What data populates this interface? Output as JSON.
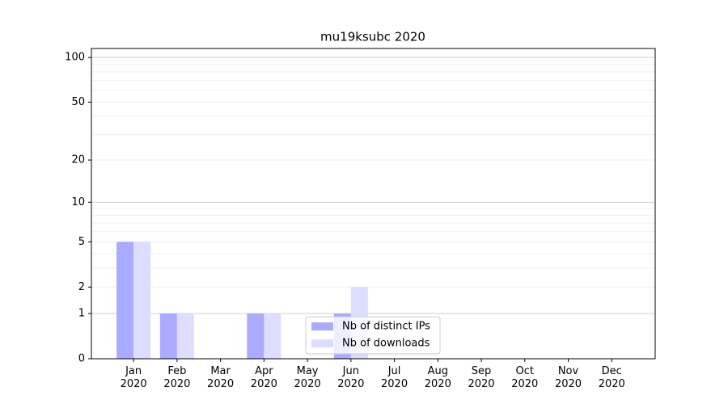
{
  "chart_data": {
    "type": "bar",
    "title": "mu19ksubc 2020",
    "categories": [
      "Jan 2020",
      "Feb 2020",
      "Mar 2020",
      "Apr 2020",
      "May 2020",
      "Jun 2020",
      "Jul 2020",
      "Aug 2020",
      "Sep 2020",
      "Oct 2020",
      "Nov 2020",
      "Dec 2020"
    ],
    "series": [
      {
        "name": "Nb of distinct IPs",
        "color": "#aaaaff",
        "values": [
          5,
          1,
          0,
          1,
          0,
          1,
          0,
          0,
          0,
          0,
          0,
          0
        ]
      },
      {
        "name": "Nb of downloads",
        "color": "#ddddff",
        "values": [
          5,
          1,
          0,
          1,
          0,
          2,
          0,
          0,
          0,
          0,
          0,
          0
        ]
      }
    ],
    "yscale": "log1p",
    "ylim": [
      0,
      115
    ],
    "yticks": [
      0,
      1,
      2,
      5,
      10,
      20,
      50,
      100
    ],
    "major_grid": [
      1,
      10,
      100
    ],
    "minor_yticks": [
      2,
      3,
      4,
      5,
      6,
      7,
      8,
      9,
      20,
      30,
      40,
      50,
      60,
      70,
      80,
      90
    ],
    "grid": true,
    "legend": "lower center"
  }
}
